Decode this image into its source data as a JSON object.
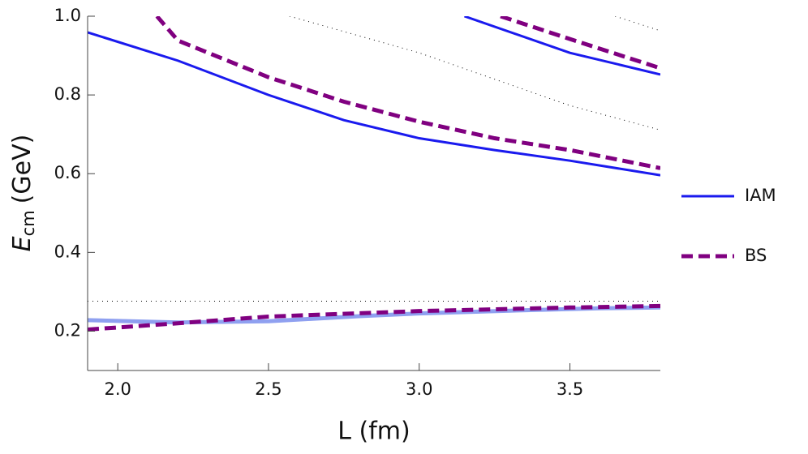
{
  "chart_data": {
    "type": "line",
    "xlabel": "L (fm)",
    "ylabel": [
      "E",
      "cm",
      "(GeV)"
    ],
    "xlim": [
      1.9,
      3.8
    ],
    "ylim": [
      0.1,
      1.0
    ],
    "xticks": [
      {
        "value": 2,
        "label": "2.0"
      },
      2.5,
      {
        "value": 3,
        "label": "3.0"
      },
      3.5
    ],
    "yticks": [
      0.2,
      0.4,
      0.6,
      0.8,
      {
        "value": 1,
        "label": "1.0"
      }
    ],
    "legend": "right",
    "series": [
      {
        "name": "IAM",
        "color": "#1a1aee",
        "style": "solid",
        "x": [
          1.9,
          2.2,
          2.5,
          2.75,
          3.0,
          3.25,
          3.5,
          3.8
        ],
        "values": [
          0.959,
          0.887,
          0.8,
          0.736,
          0.69,
          0.66,
          0.633,
          0.596
        ]
      },
      {
        "color": "#1a1aee",
        "style": "solid",
        "x": [
          3.15,
          3.5,
          3.8
        ],
        "values": [
          1.0,
          0.907,
          0.852
        ]
      },
      {
        "color": "#8fa0f0",
        "style": "thick",
        "x": [
          1.9,
          2.2,
          2.5,
          2.8,
          3.0,
          3.3,
          3.6,
          3.8
        ],
        "values": [
          0.228,
          0.222,
          0.225,
          0.238,
          0.245,
          0.252,
          0.258,
          0.26
        ]
      },
      {
        "name": "BS",
        "color": "#800080",
        "style": "dashed",
        "x": [
          2.13,
          2.2,
          2.5,
          2.75,
          3.0,
          3.25,
          3.5,
          3.8
        ],
        "values": [
          1.0,
          0.938,
          0.845,
          0.783,
          0.732,
          0.69,
          0.66,
          0.614
        ]
      },
      {
        "color": "#800080",
        "style": "dashed",
        "x": [
          3.27,
          3.5,
          3.8
        ],
        "values": [
          1.0,
          0.942,
          0.868
        ]
      },
      {
        "color": "#800080",
        "style": "dashed",
        "x": [
          1.9,
          2.2,
          2.5,
          3.0,
          3.5,
          3.8
        ],
        "values": [
          0.204,
          0.22,
          0.237,
          0.251,
          0.26,
          0.264
        ]
      },
      {
        "color": "#000000",
        "style": "dotted",
        "x": [
          1.9,
          3.8
        ],
        "values": [
          0.276,
          0.276
        ]
      },
      {
        "color": "#000000",
        "style": "dotted",
        "x": [
          2.57,
          3.0,
          3.5,
          3.8
        ],
        "values": [
          1.0,
          0.907,
          0.773,
          0.711
        ]
      },
      {
        "color": "#000000",
        "style": "dotted",
        "x": [
          3.65,
          3.8
        ],
        "values": [
          1.0,
          0.963
        ]
      }
    ]
  }
}
